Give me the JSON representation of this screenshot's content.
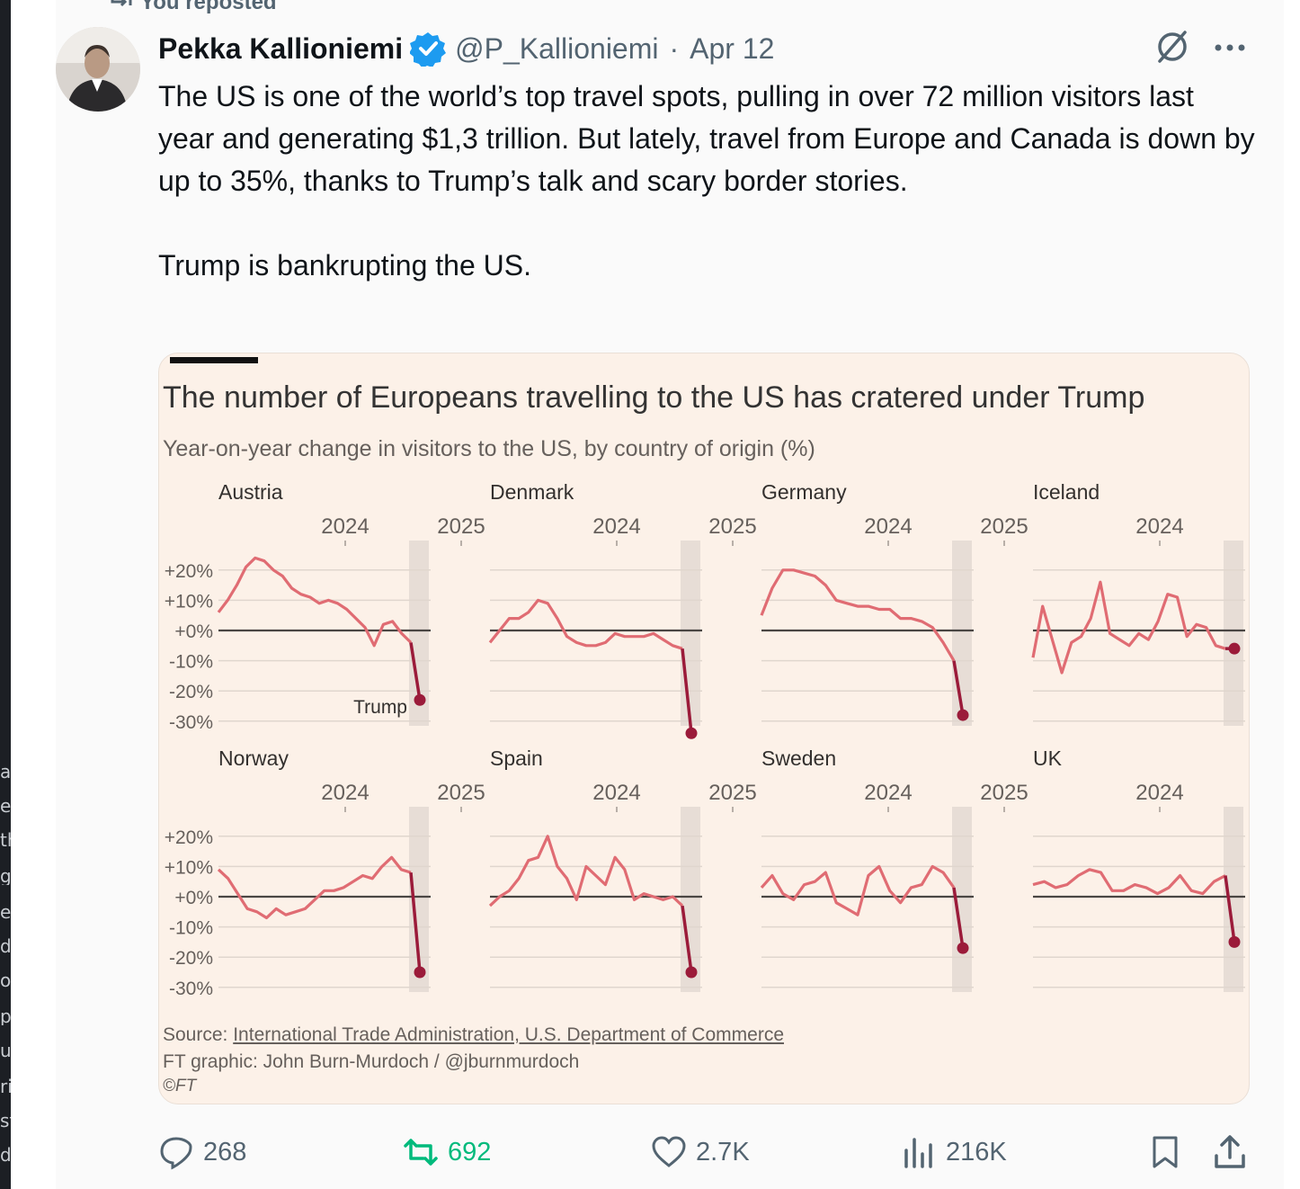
{
  "repost_label": "You reposted",
  "tweet": {
    "author_name": "Pekka Kallioniemi",
    "handle": "@P_Kallioniemi",
    "separator": "·",
    "date": "Apr 12",
    "text_paragraphs": [
      "The US is one of the world’s top travel spots, pulling in over 72 million visitors last year and generating $1,3 trillion. But lately, travel from Europe and Canada is down by up to 35%, thanks to Trump’s talk and scary border stories.",
      "Trump is bankrupting the US."
    ]
  },
  "card": {
    "source_prefix": "Source: ",
    "source_link": "International Trade Administration, U.S. Department of Commerce",
    "credit": "FT graphic: John Burn-Murdoch / @jburnmurdoch",
    "copyright": "©FT"
  },
  "chart_data": {
    "type": "line",
    "title": "The number of Europeans travelling to the US has cratered under Trump",
    "subtitle": "Year-on-year change in visitors to the US, by country of origin (%)",
    "x_tick_labels": [
      "2024",
      "2025"
    ],
    "y_tick_labels": [
      "+20%",
      "+10%",
      "+0%",
      "-10%",
      "-20%",
      "-30%"
    ],
    "ylim": [
      -30,
      20
    ],
    "annotation": "Trump",
    "line_color": "#e06c73",
    "highlight_color": "#9b1b3a",
    "panels": [
      {
        "name": "Austria",
        "values": [
          6,
          10,
          15,
          21,
          24,
          23,
          20,
          18,
          14,
          12,
          11,
          9,
          10,
          9,
          7,
          4,
          1,
          -5,
          2,
          3,
          -1,
          -4
        ],
        "final": -23
      },
      {
        "name": "Denmark",
        "values": [
          -4,
          0,
          4,
          4,
          6,
          10,
          9,
          4,
          -2,
          -4,
          -5,
          -5,
          -4,
          -1,
          -2,
          -2,
          -2,
          -1,
          -3,
          -5,
          -6
        ],
        "final": -34
      },
      {
        "name": "Germany",
        "values": [
          5,
          14,
          20,
          20,
          19,
          18,
          15,
          10,
          9,
          8,
          8,
          7,
          7,
          4,
          4,
          3,
          1,
          -4,
          -10
        ],
        "final": -28
      },
      {
        "name": "Iceland",
        "values": [
          -9,
          8,
          -3,
          -14,
          -4,
          -2,
          4,
          16,
          -1,
          -3,
          -5,
          -1,
          -3,
          3,
          12,
          11,
          -2,
          2,
          1,
          -5,
          -6
        ],
        "final": -6
      },
      {
        "name": "Norway",
        "values": [
          9,
          6,
          1,
          -4,
          -5,
          -7,
          -4,
          -6,
          -5,
          -4,
          -1,
          2,
          2,
          3,
          5,
          7,
          6,
          10,
          13,
          9,
          8
        ],
        "final": -25
      },
      {
        "name": "Spain",
        "values": [
          -3,
          0,
          2,
          6,
          12,
          13,
          20,
          10,
          6,
          -1,
          10,
          7,
          4,
          13,
          9,
          -1,
          1,
          0,
          -1,
          0,
          -3
        ],
        "final": -25
      },
      {
        "name": "Sweden",
        "values": [
          3,
          7,
          1,
          -1,
          4,
          5,
          8,
          -2,
          -4,
          -6,
          7,
          10,
          2,
          -2,
          3,
          4,
          10,
          8,
          3
        ],
        "final": -17
      },
      {
        "name": "UK",
        "values": [
          4,
          5,
          3,
          4,
          7,
          9,
          8,
          2,
          2,
          4,
          3,
          1,
          3,
          7,
          2,
          1,
          5,
          7
        ],
        "final": -15
      }
    ]
  },
  "actions": {
    "replies": "268",
    "reposts": "692",
    "likes": "2.7K",
    "views": "216K"
  }
}
